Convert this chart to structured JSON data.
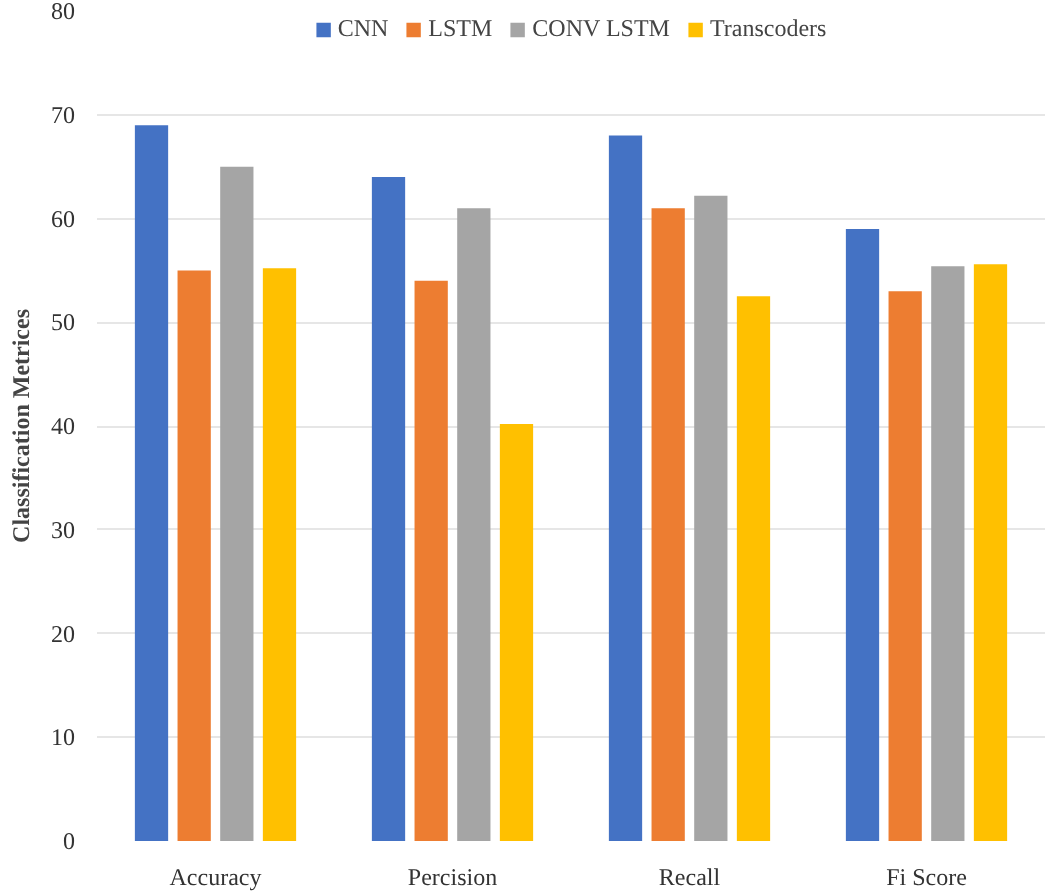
{
  "chart_data": {
    "type": "bar",
    "ylabel": "Classification Metrices",
    "categories": [
      "Accuracy",
      "Percision",
      "Recall",
      "Fi Score"
    ],
    "series": [
      {
        "name": "CNN",
        "color": "#4472c4",
        "values": [
          69,
          64,
          68,
          59
        ]
      },
      {
        "name": "LSTM",
        "color": "#ed7d31",
        "values": [
          55,
          54,
          61,
          53
        ]
      },
      {
        "name": "CONV LSTM",
        "color": "#a5a5a5",
        "values": [
          65,
          61,
          62.2,
          55.4
        ]
      },
      {
        "name": "Transcoders",
        "color": "#ffc000",
        "values": [
          55.2,
          40.2,
          52.5,
          55.6
        ]
      }
    ],
    "ylim": [
      0,
      80
    ],
    "yticks": [
      0,
      10,
      20,
      30,
      40,
      50,
      60,
      70,
      80
    ],
    "grid": "y",
    "legend": "top"
  }
}
